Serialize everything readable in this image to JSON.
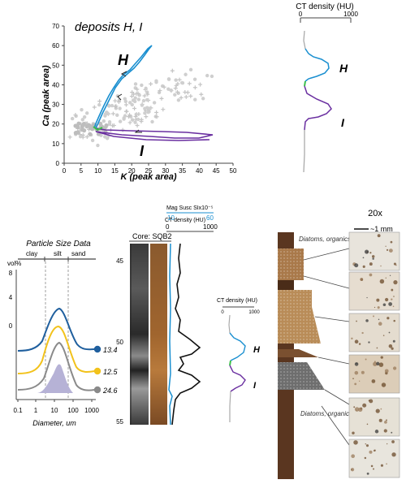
{
  "scatter": {
    "title": "deposits H, I",
    "xlabel": "K (peak area)",
    "ylabel": "Ca (peak area)",
    "xticks": [
      "0",
      "5",
      "10",
      "15",
      "20",
      "25",
      "30",
      "35",
      "40",
      "45",
      "50"
    ],
    "yticks": [
      "0",
      "10",
      "20",
      "30",
      "40",
      "50",
      "60",
      "70"
    ],
    "label_h": "H",
    "label_i": "I"
  },
  "ct_top": {
    "title": "CT density (HU)",
    "min": "0",
    "max": "1000",
    "label_h": "H",
    "label_i": "I"
  },
  "particle": {
    "title": "Particle Size Data",
    "clay": "clay",
    "silt": "silt",
    "sand": "sand",
    "vol_label": "vol%",
    "yticks": [
      "8",
      "4",
      "0"
    ],
    "xticks": [
      "0.1",
      "1",
      "10",
      "100",
      "1000"
    ],
    "xlabel": "Diameter, um",
    "curves": [
      {
        "label": "13.4",
        "color": "#1f5f9e"
      },
      {
        "label": "12.5",
        "color": "#f2c21b"
      },
      {
        "label": "24.6",
        "color": "#8a8a8a"
      }
    ]
  },
  "core": {
    "mag_title": "Mag Susc SIx10⁻⁵",
    "mag_min": "10",
    "mag_max": "60",
    "ct_title": "CT density (HU)",
    "ct_min": "0",
    "ct_max": "1000",
    "core_label": "Core: SQB2",
    "depths": [
      "45",
      "50",
      "55"
    ]
  },
  "ct_small": {
    "title": "CT density (HU)",
    "min": "0",
    "max": "1000",
    "label_h": "H",
    "label_i": "I"
  },
  "strat": {
    "top_label": "Diatoms, organics",
    "bottom_label": "Diatoms, organics"
  },
  "micro": {
    "magnification": "20x",
    "scale": "~1 mm"
  },
  "colors": {
    "blue": "#1a8fd0",
    "purple": "#6a2fa0",
    "green": "#3cbf4a",
    "grey_points": "#c8c8c8"
  }
}
